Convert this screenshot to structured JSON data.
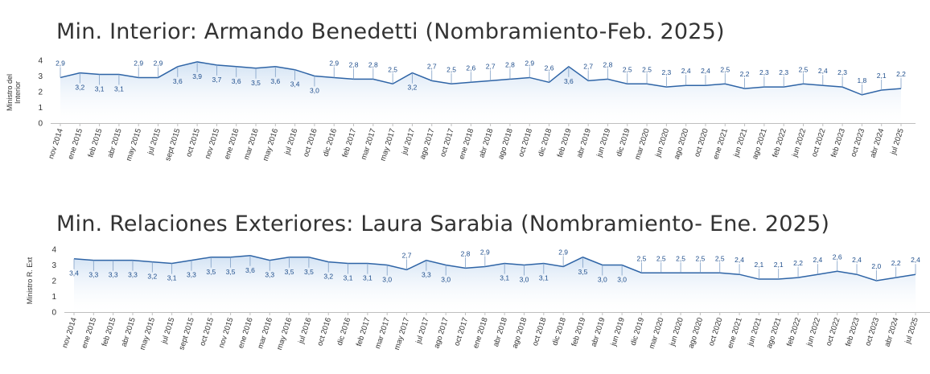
{
  "chart_data": [
    {
      "type": "area",
      "title": "Min. Interior: Armando Benedetti (Nombramiento-Feb. 2025)",
      "ylabel": "Ministro del Interior",
      "xlabel": "",
      "ylim": [
        0,
        4
      ],
      "yticks": [
        "0",
        "1",
        "2",
        "3",
        "4"
      ],
      "grid": false,
      "line_color": "#2e64a6",
      "fill_color": "#cfe0f3",
      "categories": [
        "nov 2014",
        "ene 2015",
        "feb 2015",
        "abr 2015",
        "may 2015",
        "jul 2015",
        "sept 2015",
        "oct 2015",
        "nov 2015",
        "ene 2016",
        "mar 2016",
        "may 2016",
        "jul 2016",
        "oct 2016",
        "dic 2016",
        "feb 2017",
        "mar 2017",
        "may 2017",
        "jul 2017",
        "ago 2017",
        "oct 2017",
        "ene 2018",
        "abr 2018",
        "ago 2018",
        "oct 2018",
        "dic 2018",
        "feb 2019",
        "abr 2019",
        "jun 2019",
        "dic 2019",
        "mar 2020",
        "jun 2020",
        "ago 2020",
        "oct 2020",
        "ene 2021",
        "jun 2021",
        "ago 2021",
        "feb 2022",
        "jun 2022",
        "oct 2022",
        "feb 2023",
        "oct 2023",
        "abr 2024",
        "jul 2025"
      ],
      "values": [
        2.9,
        3.2,
        3.1,
        3.1,
        2.9,
        2.9,
        3.6,
        3.9,
        3.7,
        3.6,
        3.5,
        3.6,
        3.4,
        3.0,
        2.9,
        2.8,
        2.8,
        2.5,
        3.2,
        2.7,
        2.5,
        2.6,
        2.7,
        2.8,
        2.9,
        2.6,
        3.6,
        2.7,
        2.8,
        2.5,
        2.5,
        2.3,
        2.4,
        2.4,
        2.5,
        2.2,
        2.3,
        2.3,
        2.5,
        2.4,
        2.3,
        1.8,
        2.1,
        2.2
      ],
      "value_labels": [
        "2,9",
        "3,2",
        "3,1",
        "3,1",
        "2,9",
        "2,9",
        "3,6",
        "3,9",
        "3,7",
        "3,6",
        "3,5",
        "3,6",
        "3,4",
        "3,0",
        "2,9",
        "2,8",
        "2,8",
        "2,5",
        "3,2",
        "2,7",
        "2,5",
        "2,6",
        "2,7",
        "2,8",
        "2,9",
        "2,6",
        "3,6",
        "2,7",
        "2,8",
        "2,5",
        "2,5",
        "2,3",
        "2,4",
        "2,4",
        "2,5",
        "2,2",
        "2,3",
        "2,3",
        "2,5",
        "2,4",
        "2,3",
        "1,8",
        "2,1",
        "2,2"
      ],
      "label_positions": [
        "above",
        "below",
        "below",
        "below",
        "above",
        "above",
        "below",
        "below",
        "below",
        "below",
        "below",
        "below",
        "below",
        "below",
        "above",
        "above",
        "above",
        "above",
        "below",
        "above",
        "above",
        "above",
        "above",
        "above",
        "above",
        "above",
        "below",
        "above",
        "above",
        "above",
        "above",
        "above",
        "above",
        "above",
        "above",
        "above",
        "above",
        "above",
        "above",
        "above",
        "above",
        "above",
        "above",
        "above"
      ]
    },
    {
      "type": "area",
      "title": "Min. Relaciones Exteriores: Laura Sarabia (Nombramiento- Ene. 2025)",
      "ylabel": "Ministro R. Ext",
      "xlabel": "",
      "ylim": [
        0,
        4
      ],
      "yticks": [
        "0",
        "1",
        "2",
        "3",
        "4"
      ],
      "grid": false,
      "line_color": "#2e64a6",
      "fill_color": "#cfe0f3",
      "categories": [
        "nov 2014",
        "ene 2015",
        "feb 2015",
        "abr 2015",
        "may 2015",
        "jul 2015",
        "sept 2015",
        "oct 2015",
        "nov 2015",
        "ene 2016",
        "mar 2016",
        "may 2016",
        "jul 2016",
        "oct 2016",
        "dic 2016",
        "feb 2017",
        "mar 2017",
        "may 2017",
        "jul 2017",
        "ago 2017",
        "oct 2017",
        "ene 2018",
        "abr 2018",
        "ago 2018",
        "oct 2018",
        "dic 2018",
        "feb 2019",
        "abr 2019",
        "jun 2019",
        "dic 2019",
        "mar 2020",
        "jun 2020",
        "ago 2020",
        "oct 2020",
        "ene 2021",
        "jun 2021",
        "ago 2021",
        "feb 2022",
        "jun 2022",
        "oct 2022",
        "feb 2023",
        "oct 2023",
        "abr 2024",
        "jul 2025"
      ],
      "values": [
        3.4,
        3.3,
        3.3,
        3.3,
        3.2,
        3.1,
        3.3,
        3.5,
        3.5,
        3.6,
        3.3,
        3.5,
        3.5,
        3.2,
        3.1,
        3.1,
        3.0,
        2.7,
        3.3,
        3.0,
        2.8,
        2.9,
        3.1,
        3.0,
        3.1,
        2.9,
        3.5,
        3.0,
        3.0,
        2.5,
        2.5,
        2.5,
        2.5,
        2.5,
        2.4,
        2.1,
        2.1,
        2.2,
        2.4,
        2.6,
        2.4,
        2.0,
        2.2,
        2.4
      ],
      "value_labels": [
        "3,4",
        "3,3",
        "3,3",
        "3,3",
        "3,2",
        "3,1",
        "3,3",
        "3,5",
        "3,5",
        "3,6",
        "3,3",
        "3,5",
        "3,5",
        "3,2",
        "3,1",
        "3,1",
        "3,0",
        "2,7",
        "3,3",
        "3,0",
        "2,8",
        "2,9",
        "3,1",
        "3,0",
        "3,1",
        "2,9",
        "3,5",
        "3,0",
        "3,0",
        "2,5",
        "2,5",
        "2,5",
        "2,5",
        "2,5",
        "2,4",
        "2,1",
        "2,1",
        "2,2",
        "2,4",
        "2,6",
        "2,4",
        "2,0",
        "2,2",
        "2,4"
      ],
      "label_positions": [
        "below",
        "below",
        "below",
        "below",
        "below",
        "below",
        "below",
        "below",
        "below",
        "below",
        "below",
        "below",
        "below",
        "below",
        "below",
        "below",
        "below",
        "above",
        "below",
        "below",
        "above",
        "above",
        "below",
        "below",
        "below",
        "above",
        "below",
        "below",
        "below",
        "above",
        "above",
        "above",
        "above",
        "above",
        "above",
        "above",
        "above",
        "above",
        "above",
        "above",
        "above",
        "above",
        "above",
        "above"
      ]
    }
  ]
}
